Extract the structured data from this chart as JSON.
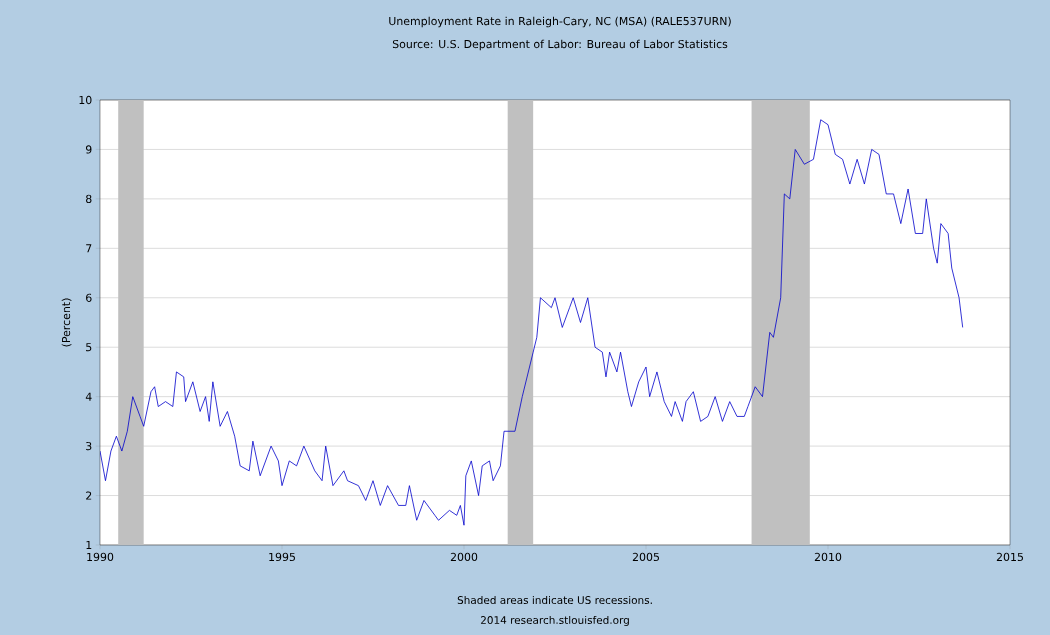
{
  "chart_data": {
    "type": "line",
    "title": "Unemployment Rate in Raleigh-Cary, NC (MSA) (RALE537URN)",
    "subtitle": "Source: U.S. Department of Labor: Bureau of Labor Statistics",
    "ylabel": "(Percent)",
    "annotations": [
      "Shaded areas indicate US recessions.",
      "2014 research.stlouisfed.org"
    ],
    "xlim": [
      1990,
      2015
    ],
    "xticks": [
      1990,
      1995,
      2000,
      2005,
      2010,
      2015
    ],
    "ylim": [
      1,
      10
    ],
    "yticks": [
      1,
      2,
      3,
      4,
      5,
      6,
      7,
      8,
      9,
      10
    ],
    "grid": "y",
    "marker": "none",
    "line_style": "solid",
    "bands": [
      {
        "axis": "x",
        "from": 1990.5,
        "to": 1991.2,
        "color": "#c0c0c0"
      },
      {
        "axis": "x",
        "from": 2001.2,
        "to": 2001.9,
        "color": "#c0c0c0"
      },
      {
        "axis": "x",
        "from": 2007.9,
        "to": 2009.5,
        "color": "#c0c0c0"
      }
    ],
    "series": [
      {
        "color": "#0000cc",
        "x": [
          1990.0,
          1990.15,
          1990.3,
          1990.45,
          1990.6,
          1990.75,
          1990.9,
          1991.1,
          1991.2,
          1991.4,
          1991.5,
          1991.6,
          1991.8,
          1992.0,
          1992.1,
          1992.3,
          1992.35,
          1992.55,
          1992.75,
          1992.9,
          1993.0,
          1993.1,
          1993.3,
          1993.5,
          1993.7,
          1993.85,
          1994.1,
          1994.2,
          1994.4,
          1994.7,
          1994.9,
          1995.0,
          1995.2,
          1995.4,
          1995.6,
          1995.9,
          1996.1,
          1996.2,
          1996.4,
          1996.7,
          1996.8,
          1997.1,
          1997.3,
          1997.5,
          1997.7,
          1997.9,
          1998.2,
          1998.4,
          1998.5,
          1998.7,
          1998.9,
          1999.2,
          1999.3,
          1999.6,
          1999.8,
          1999.9,
          2000.0,
          2000.05,
          2000.2,
          2000.4,
          2000.5,
          2000.7,
          2000.8,
          2001.0,
          2001.1,
          2001.4,
          2001.6,
          2001.9,
          2002.0,
          2002.1,
          2002.4,
          2002.5,
          2002.7,
          2002.9,
          2003.0,
          2003.2,
          2003.4,
          2003.6,
          2003.8,
          2003.9,
          2004.0,
          2004.2,
          2004.3,
          2004.5,
          2004.6,
          2004.8,
          2005.0,
          2005.1,
          2005.3,
          2005.5,
          2005.7,
          2005.8,
          2006.0,
          2006.1,
          2006.3,
          2006.5,
          2006.7,
          2006.9,
          2007.1,
          2007.3,
          2007.5,
          2007.7,
          2007.8,
          2008.0,
          2008.2,
          2008.4,
          2008.5,
          2008.7,
          2008.8,
          2008.95,
          2009.1,
          2009.35,
          2009.6,
          2009.8,
          2010.0,
          2010.2,
          2010.4,
          2010.6,
          2010.8,
          2011.0,
          2011.2,
          2011.4,
          2011.6,
          2011.8,
          2012.0,
          2012.2,
          2012.4,
          2012.6,
          2012.7,
          2012.9,
          2013.0,
          2013.1,
          2013.3,
          2013.4,
          2013.6,
          2013.7
        ],
        "values": [
          2.9,
          2.3,
          2.9,
          3.2,
          2.9,
          3.3,
          4.0,
          3.6,
          3.4,
          4.1,
          4.2,
          3.8,
          3.9,
          3.8,
          4.5,
          4.4,
          3.9,
          4.3,
          3.7,
          4.0,
          3.5,
          4.3,
          3.4,
          3.7,
          3.2,
          2.6,
          2.5,
          3.1,
          2.4,
          3.0,
          2.7,
          2.2,
          2.7,
          2.6,
          3.0,
          2.5,
          2.3,
          3.0,
          2.2,
          2.5,
          2.3,
          2.2,
          1.9,
          2.3,
          1.8,
          2.2,
          1.8,
          1.8,
          2.2,
          1.5,
          1.9,
          1.6,
          1.5,
          1.7,
          1.6,
          1.8,
          1.4,
          2.4,
          2.7,
          2.0,
          2.6,
          2.7,
          2.3,
          2.6,
          3.3,
          3.3,
          4.0,
          4.9,
          5.2,
          6.0,
          5.8,
          6.0,
          5.4,
          5.8,
          6.0,
          5.5,
          6.0,
          5.0,
          4.9,
          4.4,
          4.9,
          4.5,
          4.9,
          4.1,
          3.8,
          4.3,
          4.6,
          4.0,
          4.5,
          3.9,
          3.6,
          3.9,
          3.5,
          3.9,
          4.1,
          3.5,
          3.6,
          4.0,
          3.5,
          3.9,
          3.6,
          3.6,
          3.8,
          4.2,
          4.0,
          5.3,
          5.2,
          6.0,
          8.1,
          8.0,
          9.0,
          8.7,
          8.8,
          9.6,
          9.5,
          8.9,
          8.8,
          8.3,
          8.8,
          8.3,
          9.0,
          8.9,
          8.1,
          8.1,
          7.5,
          8.2,
          7.3,
          7.3,
          8.0,
          7.0,
          6.7,
          7.5,
          7.3,
          6.6,
          6.0,
          5.4
        ]
      }
    ]
  }
}
